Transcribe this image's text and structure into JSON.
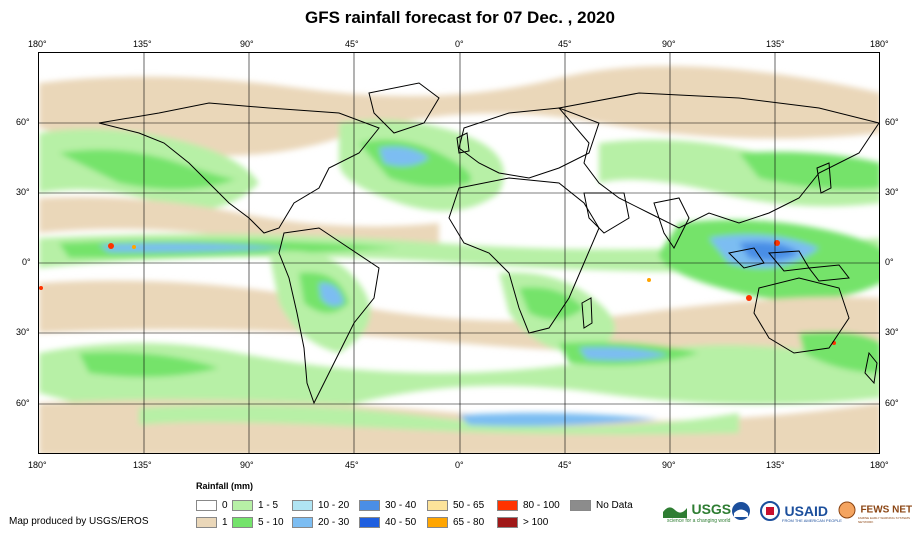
{
  "title": "GFS rainfall forecast for 07 Dec. , 2020",
  "lon_labels": [
    "180°",
    "135°",
    "90°",
    "45°",
    "0°",
    "45°",
    "90°",
    "135°",
    "180°"
  ],
  "lat_labels": [
    "60°",
    "30°",
    "0°",
    "30°",
    "60°"
  ],
  "legend": {
    "title": "Rainfall (mm)",
    "items": [
      {
        "label": "0",
        "color": "#ffffff"
      },
      {
        "label": "1",
        "color": "#ead7b9"
      },
      {
        "label": "1 - 5",
        "color": "#b7f0a6"
      },
      {
        "label": "5 - 10",
        "color": "#74e36b"
      },
      {
        "label": "10 - 20",
        "color": "#b0e4f3"
      },
      {
        "label": "20 - 30",
        "color": "#7cbdf2"
      },
      {
        "label": "30 - 40",
        "color": "#4a8ee6"
      },
      {
        "label": "40 - 50",
        "color": "#1f5fe0"
      },
      {
        "label": "50 - 65",
        "color": "#fde39a"
      },
      {
        "label": "65 - 80",
        "color": "#ffa500"
      },
      {
        "label": "80 - 100",
        "color": "#ff3300"
      },
      {
        "label": "> 100",
        "color": "#a01818"
      },
      {
        "label": "No Data",
        "color": "#8c8c8c"
      }
    ]
  },
  "credit": "Map produced by USGS/EROS",
  "logos": {
    "usgs": "USGS",
    "usgs_tagline": "science for a changing world",
    "usaid": "USAID",
    "usaid_tagline": "FROM THE AMERICAN PEOPLE",
    "fewsnet": "FEWS NET",
    "fewsnet_tagline": "FAMINE EARLY WARNING SYSTEMS NETWORK"
  }
}
